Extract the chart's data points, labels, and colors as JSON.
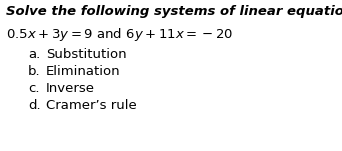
{
  "title": "Solve the following systems of linear equations.",
  "eq_part1": "$0.5x + 3y = 9$",
  "eq_and": " and ",
  "eq_part2": "$6y + 11x = -20$",
  "items": [
    {
      "label": "a.",
      "text": "Substitution"
    },
    {
      "label": "b.",
      "text": "Elimination"
    },
    {
      "label": "c.",
      "text": "Inverse"
    },
    {
      "label": "d.",
      "text": "Cramer’s rule"
    }
  ],
  "bg_color": "#ffffff",
  "text_color": "#000000",
  "title_fontsize": 9.5,
  "eq_fontsize": 9.5,
  "item_fontsize": 9.5,
  "fig_width": 3.42,
  "fig_height": 1.51,
  "dpi": 100
}
